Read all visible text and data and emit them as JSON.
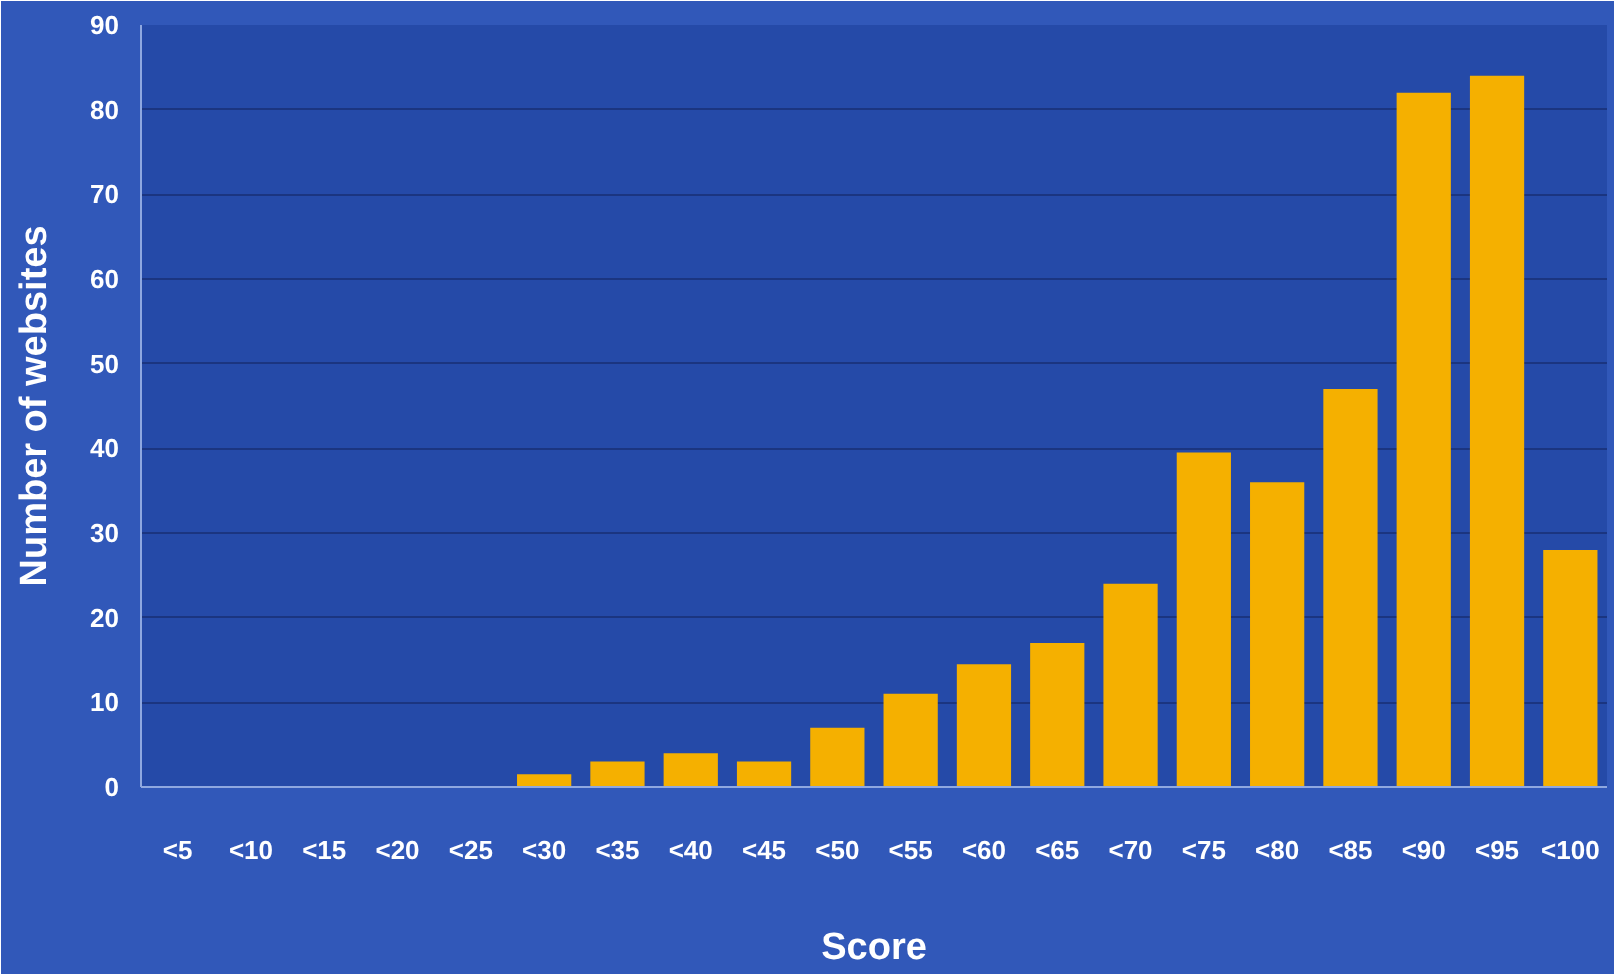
{
  "chart_data": {
    "type": "bar",
    "xlabel": "Score",
    "ylabel": "Number of websites",
    "categories": [
      "<5",
      "<10",
      "<15",
      "<20",
      "<25",
      "<30",
      "<35",
      "<40",
      "<45",
      "<50",
      "<55",
      "<60",
      "<65",
      "<70",
      "<75",
      "<80",
      "<85",
      "<90",
      "<95",
      "<100"
    ],
    "values": [
      0,
      0,
      0,
      0,
      0,
      1.5,
      3,
      4,
      3,
      7,
      11,
      14.5,
      17,
      24,
      39.5,
      36,
      47,
      82,
      84,
      28
    ],
    "color": "#f5b000",
    "ylim": [
      0,
      90
    ],
    "yticks": [
      0,
      10,
      20,
      30,
      40,
      50,
      60,
      70,
      80,
      90
    ],
    "grid": "y"
  }
}
